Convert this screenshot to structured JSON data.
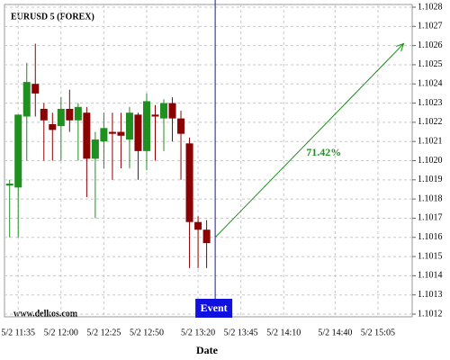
{
  "chart_data": {
    "type": "candlestick",
    "title": "EURUSD 5 (FOREX)",
    "x_label": "Date",
    "watermark": "www.delkos.com",
    "x": [
      690,
      695,
      700,
      705,
      710,
      715,
      720,
      725,
      730,
      735,
      740,
      745,
      750,
      755,
      760,
      765,
      770,
      775,
      780,
      785,
      790,
      795,
      800,
      805
    ],
    "open": [
      1.10187,
      1.10186,
      1.10223,
      1.1024,
      1.10227,
      1.10219,
      1.10218,
      1.10227,
      1.10221,
      1.10225,
      1.10201,
      1.1021,
      1.10215,
      1.10215,
      1.10211,
      1.10224,
      1.10205,
      1.10224,
      1.10222,
      1.1023,
      1.10222,
      1.10209,
      1.10168,
      1.10164
    ],
    "high": [
      1.1019,
      1.10224,
      1.10251,
      1.10261,
      1.1023,
      1.10225,
      1.10233,
      1.10237,
      1.1023,
      1.10228,
      1.10215,
      1.10225,
      1.10225,
      1.10225,
      1.10228,
      1.10225,
      1.10235,
      1.10229,
      1.10232,
      1.10233,
      1.10226,
      1.10212,
      1.10171,
      1.10169
    ],
    "low": [
      1.1016,
      1.1016,
      1.102,
      1.10223,
      1.102,
      1.102,
      1.102,
      1.10215,
      1.102,
      1.10181,
      1.1017,
      1.10196,
      1.1019,
      1.10196,
      1.10196,
      1.1019,
      1.10195,
      1.102,
      1.10205,
      1.1021,
      1.1019,
      1.10144,
      1.10144,
      1.10144
    ],
    "close": [
      1.10188,
      1.10224,
      1.10241,
      1.10235,
      1.10221,
      1.10216,
      1.10227,
      1.10221,
      1.10228,
      1.10201,
      1.10211,
      1.10217,
      1.10214,
      1.10213,
      1.10225,
      1.10205,
      1.10231,
      1.10223,
      1.1023,
      1.10222,
      1.10214,
      1.10168,
      1.10164,
      1.10157
    ],
    "up_color": "#1f8f1f",
    "down_color": "#8b0000",
    "xlim": [
      687,
      925
    ],
    "ylim": [
      1.1012,
      1.1028
    ],
    "xticks": [
      {
        "value": 695,
        "label": "5/2 11:35"
      },
      {
        "value": 720,
        "label": "5/2 12:00"
      },
      {
        "value": 745,
        "label": "5/2 12:25"
      },
      {
        "value": 770,
        "label": "5/2 12:50"
      },
      {
        "value": 800,
        "label": "5/2 13:20"
      },
      {
        "value": 825,
        "label": "5/2 13:45"
      },
      {
        "value": 850,
        "label": "5/2 14:10"
      },
      {
        "value": 880,
        "label": "5/2 14:40"
      },
      {
        "value": 905,
        "label": "5/2 15:05"
      }
    ],
    "yticks": [
      1.1012,
      1.1013,
      1.1014,
      1.1015,
      1.1016,
      1.1017,
      1.1018,
      1.1019,
      {
        "value": 1.102,
        "label": "1.1020"
      },
      1.1021,
      1.1022,
      1.1023,
      1.1024,
      1.1025,
      1.1026,
      1.1027,
      1.1028
    ],
    "grid": true,
    "event": {
      "label": "Event",
      "x": 810,
      "color": "#1a1aa0",
      "box_color": "#1010e0"
    },
    "forecast": {
      "x": [
        810,
        920
      ],
      "y": [
        1.1016,
        1.10261
      ],
      "label": "71.42%",
      "color": "#1f8f1f"
    }
  }
}
